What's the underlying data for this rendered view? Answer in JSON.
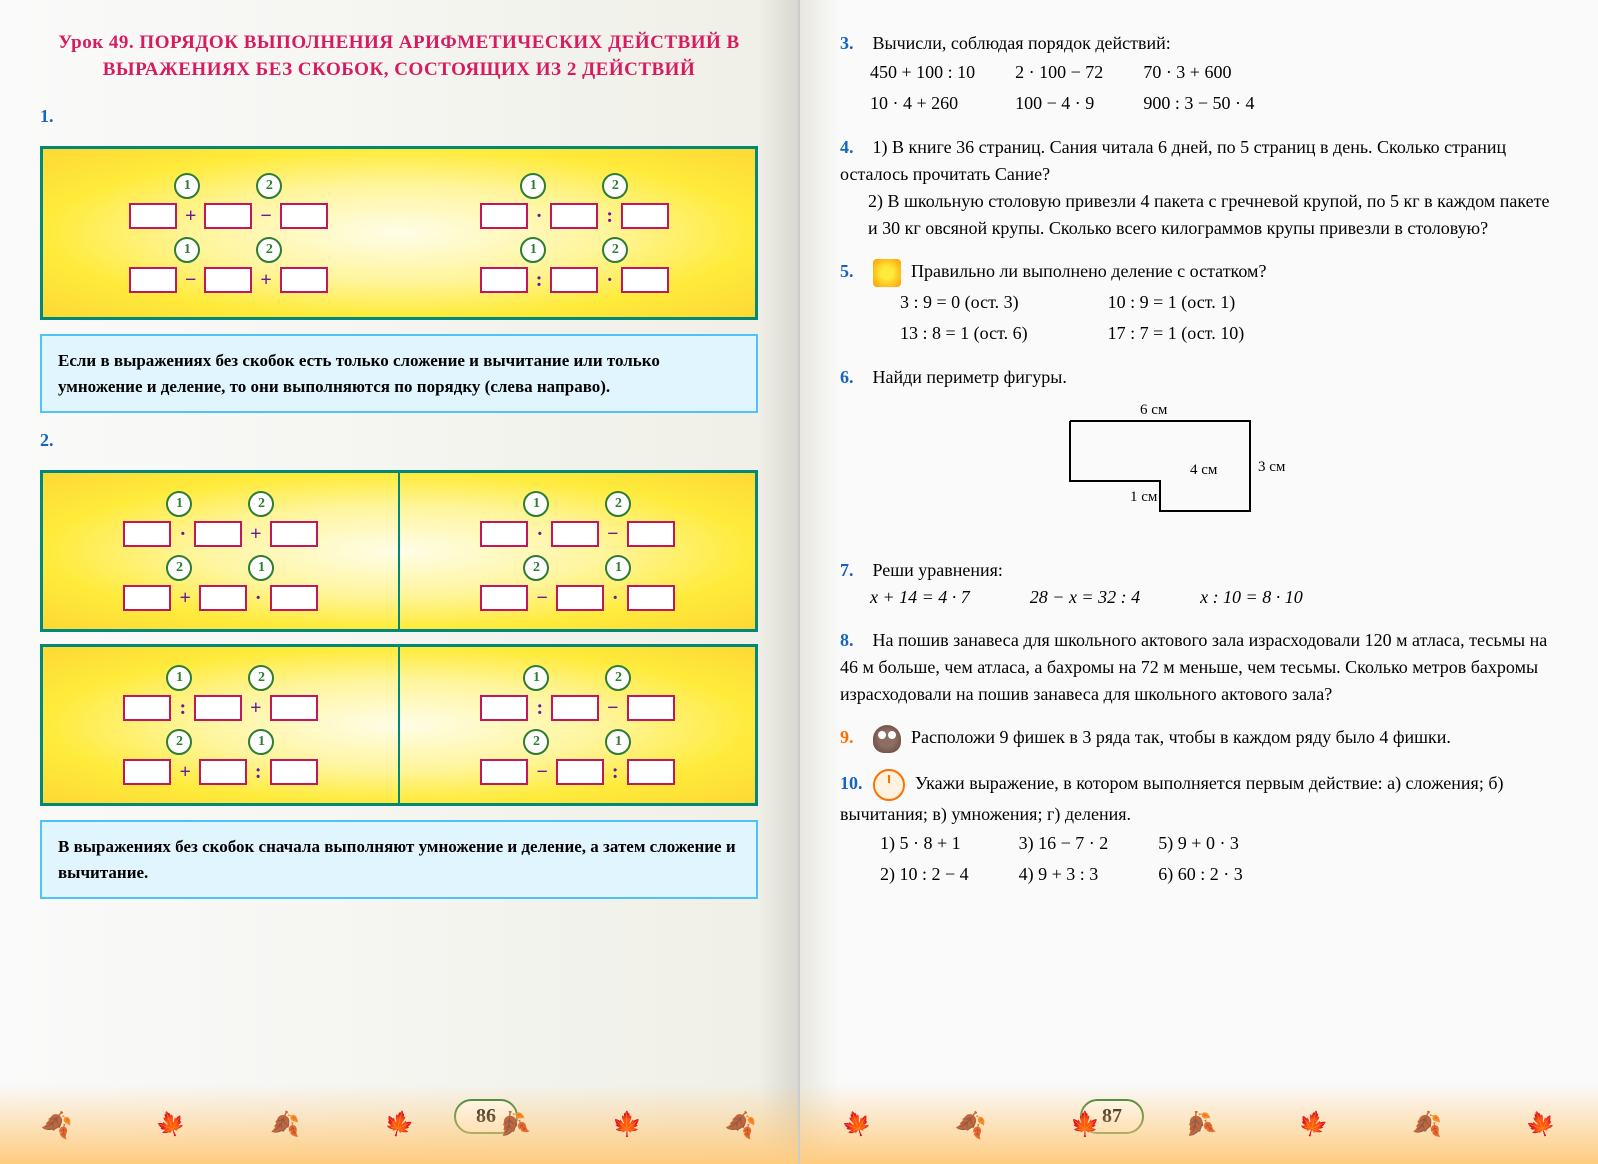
{
  "left": {
    "title": "Урок 49. ПОРЯДОК ВЫПОЛНЕНИЯ АРИФМЕТИЧЕСКИХ ДЕЙСТВИЙ В ВЫРАЖЕНИЯХ БЕЗ СКОБОК, СОСТОЯЩИХ ИЗ 2 ДЕЙСТВИЙ",
    "ex1_num": "1.",
    "diag1": {
      "rows": [
        [
          {
            "orders": [
              "1",
              "2"
            ],
            "ops": [
              "+",
              "−"
            ]
          },
          {
            "orders": [
              "1",
              "2"
            ],
            "ops": [
              "·",
              ":"
            ]
          }
        ],
        [
          {
            "orders": [
              "1",
              "2"
            ],
            "ops": [
              "−",
              "+"
            ]
          },
          {
            "orders": [
              "1",
              "2"
            ],
            "ops": [
              ":",
              "·"
            ]
          }
        ]
      ]
    },
    "rule1": "Если в выражениях без скобок есть только сложение и вычитание или только умножение и деление, то они выполняются по порядку (слева направо).",
    "ex2_num": "2.",
    "diag2a": {
      "left": [
        {
          "orders": [
            "1",
            "2"
          ],
          "ops": [
            "·",
            "+"
          ]
        },
        {
          "orders": [
            "2",
            "1"
          ],
          "ops": [
            "+",
            "·"
          ]
        }
      ],
      "right": [
        {
          "orders": [
            "1",
            "2"
          ],
          "ops": [
            "·",
            "−"
          ]
        },
        {
          "orders": [
            "2",
            "1"
          ],
          "ops": [
            "−",
            "·"
          ]
        }
      ]
    },
    "diag2b": {
      "left": [
        {
          "orders": [
            "1",
            "2"
          ],
          "ops": [
            ":",
            "+"
          ]
        },
        {
          "orders": [
            "2",
            "1"
          ],
          "ops": [
            "+",
            ":"
          ]
        }
      ],
      "right": [
        {
          "orders": [
            "1",
            "2"
          ],
          "ops": [
            ":",
            "−"
          ]
        },
        {
          "orders": [
            "2",
            "1"
          ],
          "ops": [
            "−",
            ":"
          ]
        }
      ]
    },
    "rule2": "В выражениях без скобок сначала выполняют умножение и деление, а затем сложение и вычитание.",
    "pagenum": "86"
  },
  "right": {
    "ex3": {
      "num": "3.",
      "text": "Вычисли, соблюдая порядок действий:",
      "cols": [
        [
          "450 + 100 : 10",
          "10 · 4 + 260"
        ],
        [
          "2 · 100 − 72",
          "100 − 4 · 9"
        ],
        [
          "70 · 3 + 600",
          "900 : 3 − 50 · 4"
        ]
      ]
    },
    "ex4": {
      "num": "4.",
      "text1": "1) В книге 36 страниц. Сания читала 6 дней, по 5 страниц в день. Сколько страниц осталось прочитать Сание?",
      "text2": "2) В школьную столовую привезли 4 пакета с гречневой крупой, по 5 кг в каждом пакете и 30 кг овсяной крупы. Сколько всего килограммов крупы привезли в столовую?"
    },
    "ex5": {
      "num": "5.",
      "text": "Правильно ли выполнено деление с остатком?",
      "cols": [
        [
          "3 : 9 = 0 (ост. 3)",
          "13 : 8 = 1 (ост. 6)"
        ],
        [
          "10 : 9 = 1 (ост. 1)",
          "17 : 7 = 1 (ост. 10)"
        ]
      ]
    },
    "ex6": {
      "num": "6.",
      "text": "Найди периметр фигуры.",
      "dims": {
        "top": "6 см",
        "right": "3 см",
        "notch_w": "4 см",
        "notch_h": "1 см"
      }
    },
    "ex7": {
      "num": "7.",
      "text": "Реши уравнения:",
      "eqs": [
        "x + 14 = 4 · 7",
        "28 − x = 32 : 4",
        "x : 10 = 8 · 10"
      ]
    },
    "ex8": {
      "num": "8.",
      "text": "На пошив занавеса для школьного актового зала израсходовали 120 м атласа, тесьмы на 46 м больше, чем атласа, а бахромы на 72 м меньше, чем тесьмы. Сколько метров бахромы израсходовали на пошив занавеса для школьного актового зала?"
    },
    "ex9": {
      "num": "9.",
      "text": "Расположи 9 фишек в 3 ряда так, чтобы в каждом ряду было 4 фишки."
    },
    "ex10": {
      "num": "10.",
      "text": "Укажи выражение, в котором выполняется первым действие: а) сложения; б) вычитания; в) умножения; г) деления.",
      "opts": [
        [
          "1) 5 · 8 + 1",
          "2) 10 : 2 − 4"
        ],
        [
          "3) 16 − 7 · 2",
          "4) 9 + 3 : 3"
        ],
        [
          "5) 9 + 0 · 3",
          "6) 60 : 2 · 3"
        ]
      ]
    },
    "pagenum": "87"
  }
}
